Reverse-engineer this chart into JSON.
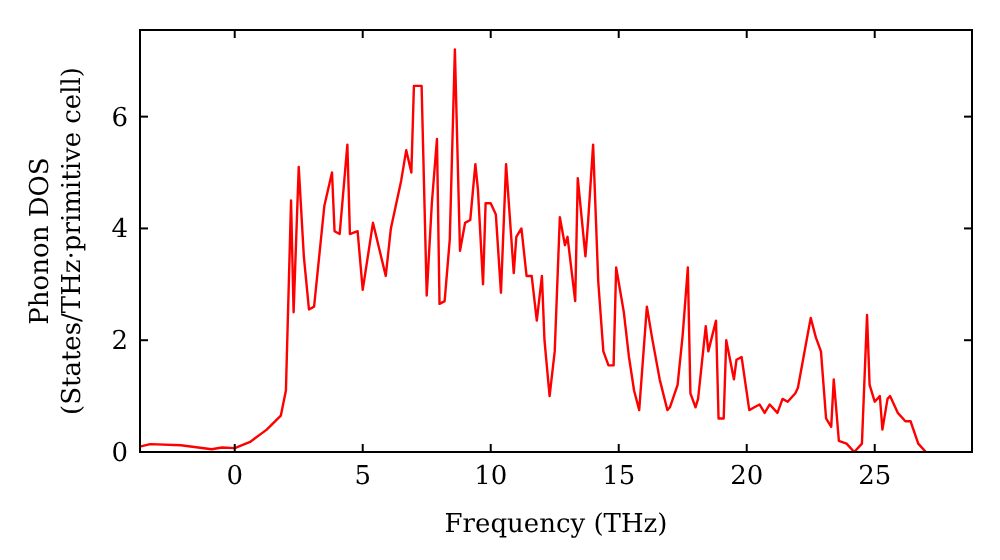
{
  "chart_data": {
    "type": "line",
    "xlabel": "Frequency (THz)",
    "ylabel": "Phonon DOS\n(States/THz·primitive cell)",
    "xlim": [
      -3.7,
      28.8
    ],
    "ylim": [
      0,
      7.55
    ],
    "xticks": [
      0,
      5,
      10,
      15,
      20,
      25
    ],
    "yticks": [
      0,
      2,
      4,
      6
    ],
    "grid": false,
    "line_style": "solid",
    "marker": "none",
    "series": [
      {
        "color": "#ff0000",
        "x": [
          -3.67,
          -3.3,
          -2.1,
          -0.9,
          -0.5,
          0,
          0.6,
          1.25,
          1.8,
          2.0,
          2.2,
          2.3,
          2.5,
          2.7,
          2.9,
          3.1,
          3.5,
          3.8,
          3.9,
          4.1,
          4.4,
          4.5,
          4.8,
          5.0,
          5.4,
          5.9,
          6.1,
          6.5,
          6.7,
          6.9,
          7.0,
          7.3,
          7.5,
          7.7,
          7.9,
          8.0,
          8.2,
          8.4,
          8.6,
          8.8,
          9.0,
          9.2,
          9.4,
          9.5,
          9.7,
          9.8,
          10.0,
          10.2,
          10.4,
          10.6,
          10.9,
          11.0,
          11.2,
          11.4,
          11.6,
          11.8,
          12.0,
          12.1,
          12.3,
          12.5,
          12.7,
          12.9,
          13.0,
          13.3,
          13.4,
          13.7,
          13.8,
          14.0,
          14.2,
          14.4,
          14.6,
          14.8,
          14.9,
          15.2,
          15.4,
          15.6,
          15.8,
          16.1,
          16.3,
          16.4,
          16.6,
          16.9,
          17.0,
          17.3,
          17.5,
          17.7,
          17.8,
          18.0,
          18.1,
          18.4,
          18.5,
          18.8,
          18.9,
          19.1,
          19.2,
          19.5,
          19.6,
          19.8,
          20.1,
          20.3,
          20.5,
          20.7,
          20.9,
          21.2,
          21.4,
          21.6,
          21.9,
          22.0,
          22.3,
          22.5,
          22.7,
          22.9,
          23.1,
          23.3,
          23.4,
          23.6,
          23.9,
          24.2,
          24.5,
          24.7,
          24.8,
          25.0,
          25.2,
          25.3,
          25.5,
          25.6,
          25.9,
          26.2,
          26.4,
          26.7,
          27.0
        ],
        "values": [
          0.1,
          0.14,
          0.12,
          0.05,
          0.08,
          0.07,
          0.18,
          0.4,
          0.65,
          1.1,
          4.5,
          2.5,
          5.1,
          3.5,
          2.55,
          2.6,
          4.4,
          5.0,
          3.95,
          3.9,
          5.5,
          3.9,
          3.95,
          2.9,
          4.1,
          3.15,
          4.0,
          4.85,
          5.4,
          5.0,
          6.55,
          6.55,
          2.8,
          4.45,
          5.6,
          2.65,
          2.7,
          3.8,
          7.2,
          3.6,
          4.1,
          4.15,
          5.15,
          4.7,
          3.0,
          4.45,
          4.45,
          4.25,
          2.85,
          5.15,
          3.2,
          3.85,
          4.0,
          3.15,
          3.15,
          2.35,
          3.15,
          2.0,
          1.0,
          1.8,
          4.2,
          3.7,
          3.85,
          2.7,
          4.9,
          3.5,
          4.1,
          5.5,
          3.05,
          1.8,
          1.55,
          1.55,
          3.3,
          2.5,
          1.7,
          1.1,
          0.75,
          2.6,
          2.05,
          1.8,
          1.3,
          0.75,
          0.8,
          1.2,
          2.1,
          3.3,
          1.05,
          0.8,
          0.95,
          2.25,
          1.8,
          2.35,
          0.6,
          0.6,
          2.0,
          1.3,
          1.65,
          1.7,
          0.75,
          0.8,
          0.85,
          0.7,
          0.85,
          0.7,
          0.95,
          0.9,
          1.05,
          1.15,
          1.9,
          2.4,
          2.05,
          1.8,
          0.6,
          0.45,
          1.3,
          0.2,
          0.15,
          0.0,
          0.15,
          2.45,
          1.2,
          0.9,
          1.0,
          0.4,
          0.95,
          1.0,
          0.7,
          0.55,
          0.55,
          0.15,
          0.0
        ]
      }
    ]
  }
}
